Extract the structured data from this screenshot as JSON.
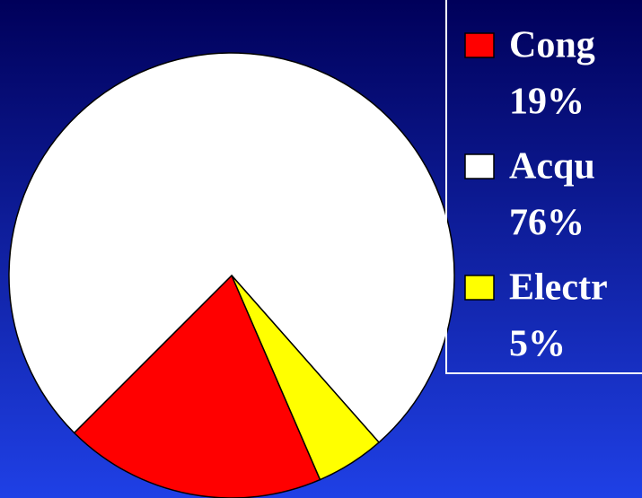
{
  "chart_data": {
    "type": "pie",
    "categories": [
      "Cong",
      "Acqu",
      "Electr"
    ],
    "values": [
      19,
      76,
      5
    ],
    "value_labels": [
      "19%",
      "76%",
      "5%"
    ],
    "colors": [
      "#ff0000",
      "#ffffff",
      "#ffff00"
    ],
    "legend": "right"
  }
}
